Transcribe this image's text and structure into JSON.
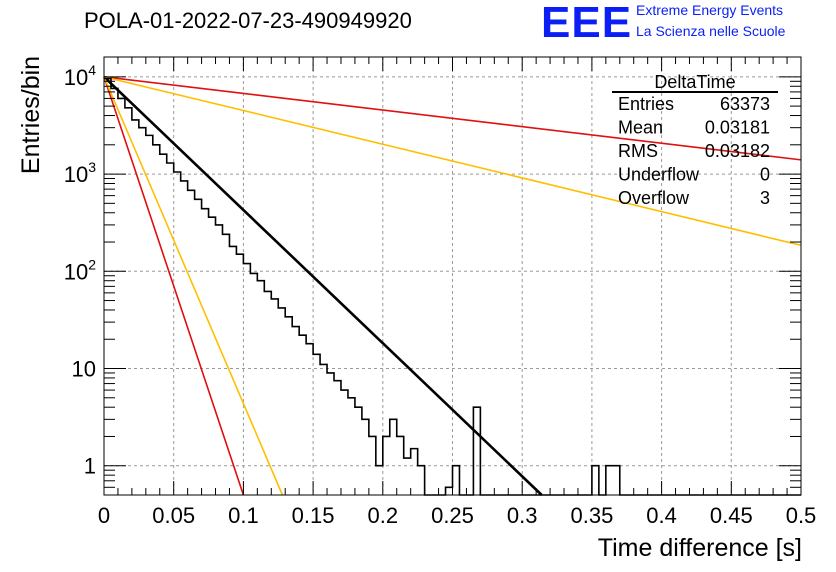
{
  "header": {
    "title": "POLA-01-2022-07-23-490949920",
    "logo_mark": "EEE",
    "logo_line1": "Extreme Energy Events",
    "logo_line2": "La Scienza nelle Scuole",
    "logo_color": "#0a1ef5"
  },
  "stats_box": {
    "name": "DeltaTime",
    "rows": [
      {
        "label": "Entries",
        "value": "63373"
      },
      {
        "label": "Mean",
        "value": "0.03181"
      },
      {
        "label": "RMS",
        "value": "0.03182"
      },
      {
        "label": "Underflow",
        "value": "0"
      },
      {
        "label": "Overflow",
        "value": "3"
      }
    ]
  },
  "chart_data": {
    "type": "line",
    "title": "POLA-01-2022-07-23-490949920",
    "xlabel": "Time difference [s]",
    "ylabel": "Entries/bin",
    "xlim": [
      0,
      0.5
    ],
    "ylim": [
      0.5,
      16000
    ],
    "y_scale": "log",
    "grid": true,
    "x_ticks": [
      "0",
      "0.05",
      "0.1",
      "0.15",
      "0.2",
      "0.25",
      "0.3",
      "0.35",
      "0.4",
      "0.45",
      "0.5"
    ],
    "y_tick_labels": [
      {
        "value": 1,
        "base": "1",
        "exp": ""
      },
      {
        "value": 10,
        "base": "10",
        "exp": ""
      },
      {
        "value": 100,
        "base": "10",
        "exp": "2"
      },
      {
        "value": 1000,
        "base": "10",
        "exp": "3"
      },
      {
        "value": 10000,
        "base": "10",
        "exp": "4"
      }
    ],
    "histogram": {
      "name": "DeltaTime",
      "bin_width": 0.005,
      "x_start": 0,
      "color": "#000000",
      "values": [
        9600,
        7600,
        6000,
        4800,
        3600,
        3000,
        2500,
        2000,
        1600,
        1300,
        1050,
        850,
        680,
        550,
        440,
        360,
        300,
        240,
        180,
        150,
        120,
        95,
        80,
        62,
        52,
        42,
        34,
        27,
        22,
        18,
        14,
        11,
        9,
        7.5,
        6,
        5,
        4,
        3,
        2,
        1,
        2,
        3,
        2,
        1.2,
        1.5,
        1,
        0.4,
        0.4,
        0.4,
        0.6,
        1,
        0.3,
        0.4,
        4,
        0.4,
        0.4,
        0.4,
        0.4,
        0.4,
        0.4,
        0.4,
        0.4,
        0.4,
        0.4,
        0.4,
        0.4,
        0.4,
        0.4,
        0.4,
        0.4,
        1,
        0.4,
        1,
        1,
        0.4,
        0.4,
        0.4,
        0.4,
        0.4,
        0.4,
        0.4,
        0.4,
        0.4,
        0.4,
        0.4,
        0.4,
        0.4,
        0.4,
        0.4,
        0.4,
        0.4,
        0.4,
        0.4,
        0.4,
        0.4,
        0.4,
        0.4,
        0.4,
        0.4,
        0.4
      ]
    },
    "series": [
      {
        "color": "#000000",
        "width": 2.6,
        "x": [
          0,
          0.314
        ],
        "y": [
          10000,
          0.5
        ]
      },
      {
        "color": "#e01010",
        "width": 1.6,
        "x": [
          0,
          0.5
        ],
        "y": [
          10000,
          1400
        ]
      },
      {
        "color": "#ffbf00",
        "width": 1.6,
        "x": [
          0,
          0.5
        ],
        "y": [
          10000,
          185
        ]
      },
      {
        "color": "#e01010",
        "width": 1.6,
        "x": [
          0,
          0.1
        ],
        "y": [
          10000,
          0.5
        ]
      },
      {
        "color": "#ffbf00",
        "width": 1.6,
        "x": [
          0,
          0.128
        ],
        "y": [
          10000,
          0.5
        ]
      }
    ]
  }
}
